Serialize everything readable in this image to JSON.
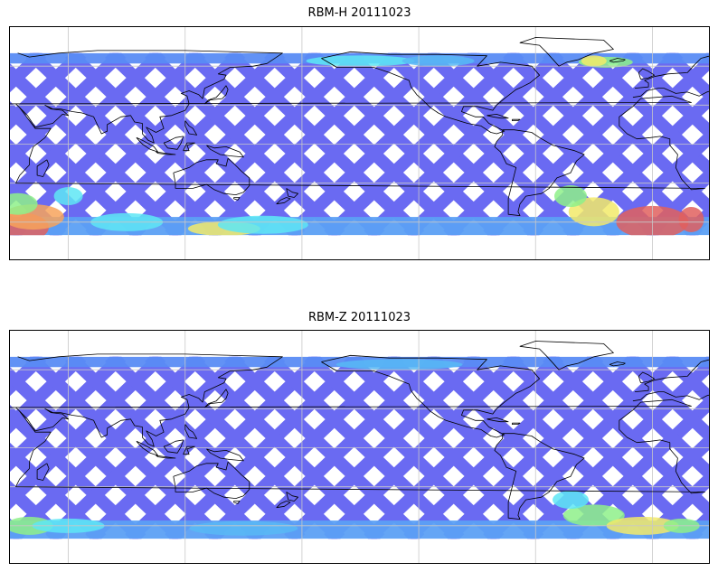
{
  "panels": [
    {
      "title": "RBM-H 20111023",
      "variant": "h"
    },
    {
      "title": "RBM-Z 20111023",
      "variant": "z"
    }
  ],
  "colors": {
    "track_base": "#6a6af2",
    "cyan": "#5ee6f5",
    "light_blue": "#58b8f4",
    "green": "#8ef08a",
    "yellow": "#f2ea6a",
    "orange": "#f7a35c",
    "red": "#e0605e",
    "coast": "#000000",
    "grid": "#c8c8c8"
  },
  "map": {
    "projection": "equirectangular",
    "lon_range": [
      30,
      390
    ],
    "lat_range": [
      -90,
      90
    ],
    "data_lat_range": [
      -70,
      70
    ],
    "meridians": [
      60,
      120,
      180,
      240,
      300,
      360
    ],
    "parallels": [
      -60,
      -30,
      0,
      30,
      60
    ]
  }
}
